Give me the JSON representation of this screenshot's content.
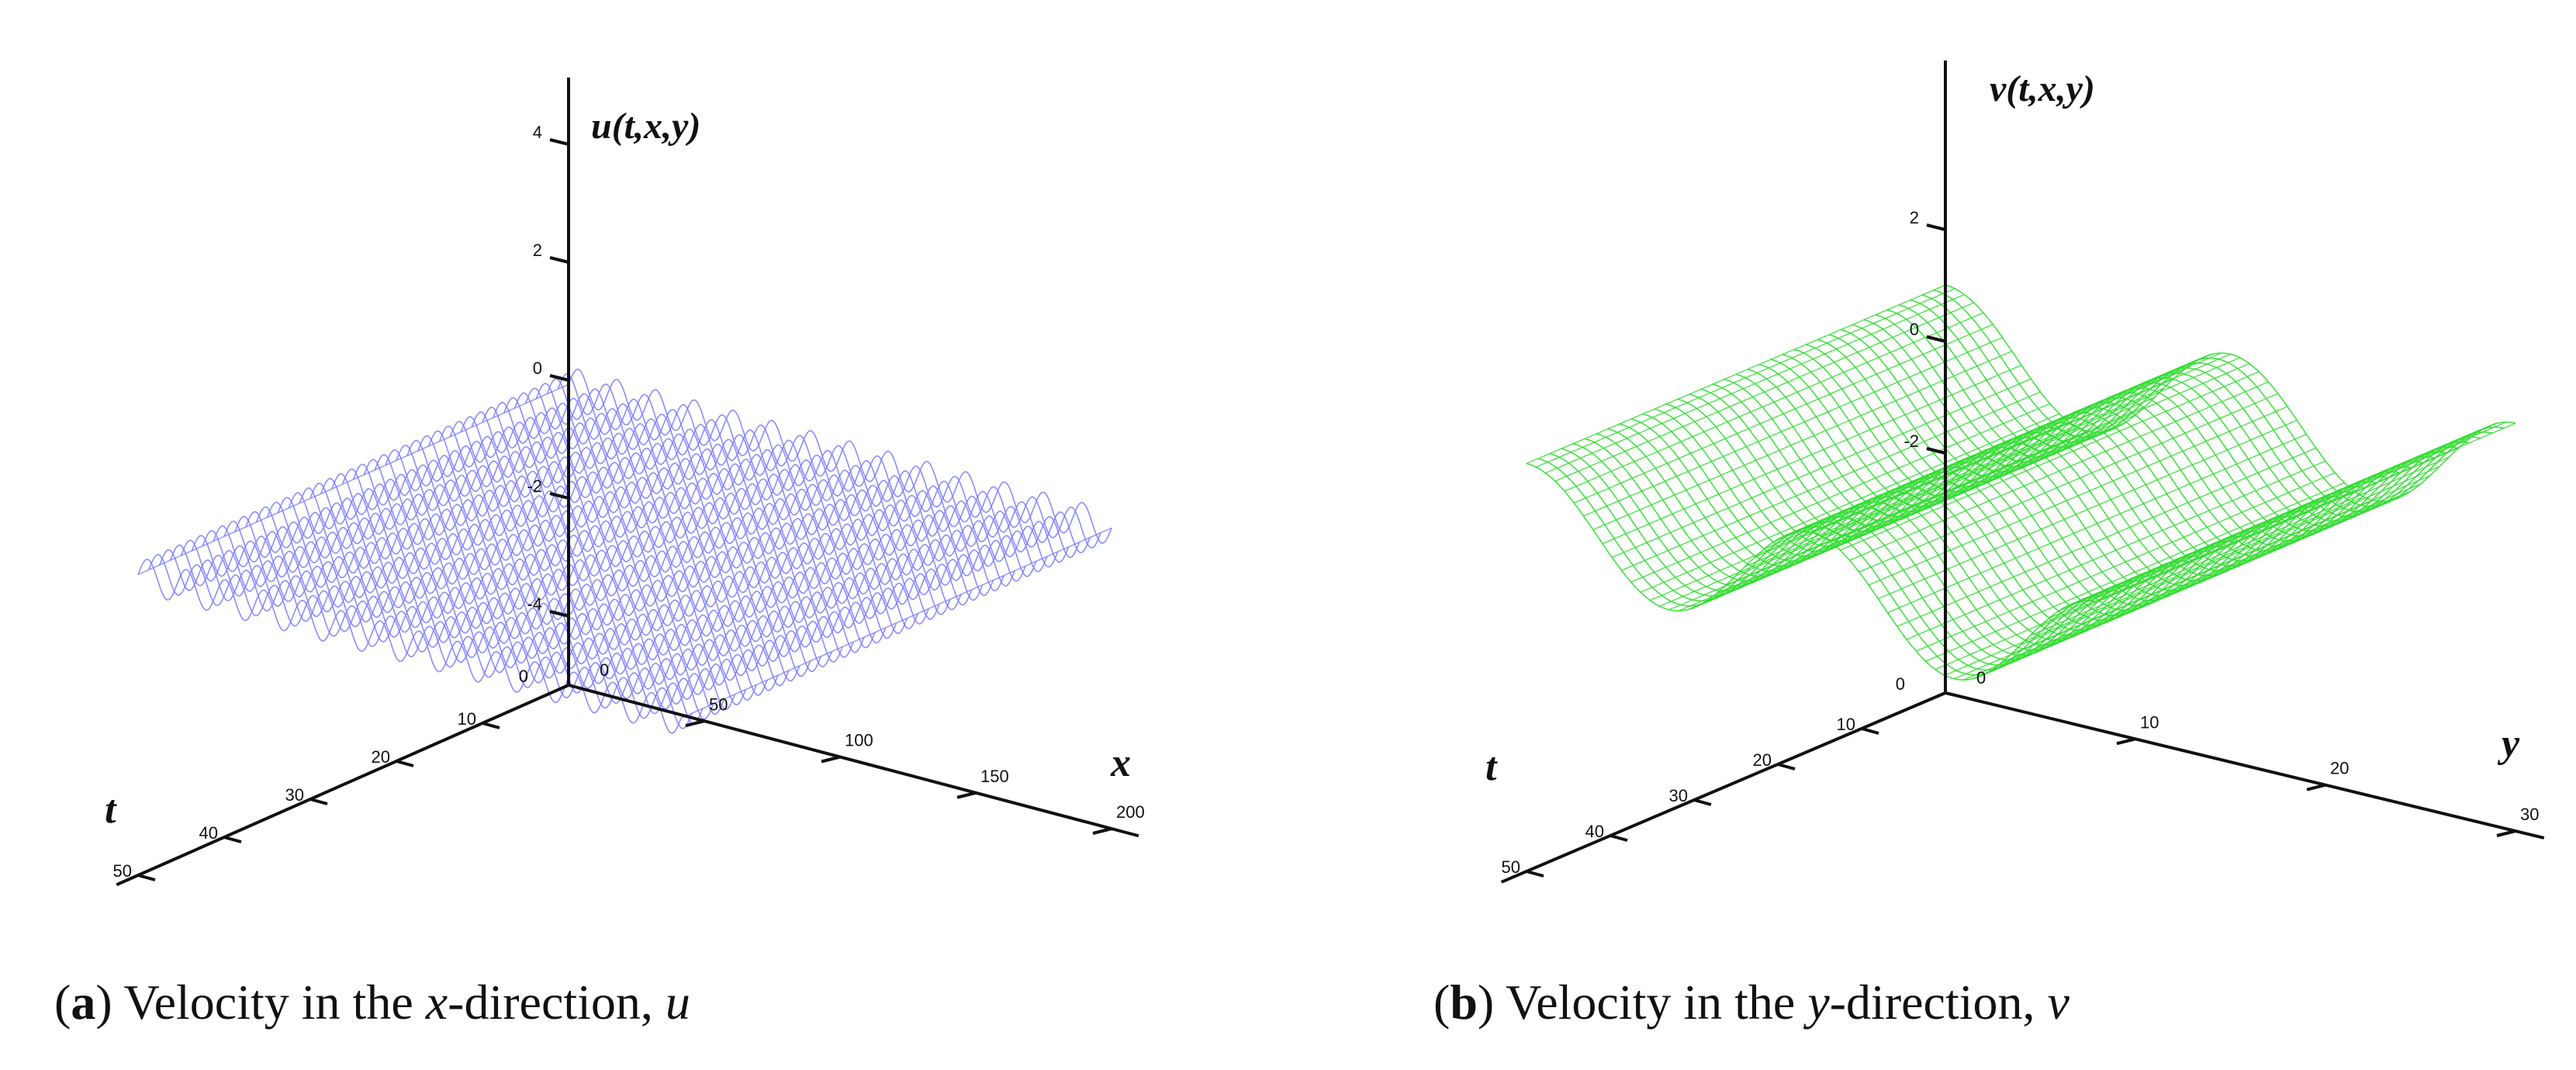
{
  "chart_data": [
    {
      "type": "surface",
      "panel_label": "a",
      "caption": {
        "prefix": "Velocity in the ",
        "var": "x",
        "middle": "-direction, ",
        "symbol": "u"
      },
      "function_label": "u(t,x,y)",
      "axes": {
        "t": {
          "label": "t",
          "ticks": [
            0,
            10,
            20,
            30,
            40,
            50
          ],
          "range": [
            0,
            50
          ]
        },
        "x": {
          "label": "x",
          "ticks": [
            0,
            50,
            100,
            150,
            200
          ],
          "range": [
            0,
            200
          ]
        },
        "z": {
          "ticks": [
            4,
            2,
            0,
            -2,
            -4
          ],
          "range": [
            -4,
            4
          ]
        }
      },
      "surface": {
        "color": "#8080ff",
        "form": "periodic ripples along x, constant in t",
        "amplitude": 0.3,
        "ripples": 14
      }
    },
    {
      "type": "surface",
      "panel_label": "b",
      "caption": {
        "prefix": "Velocity in the ",
        "var": "y",
        "middle": "-direction, ",
        "symbol": "v"
      },
      "function_label": "v(t,x,y)",
      "axes": {
        "t": {
          "label": "t",
          "ticks": [
            0,
            10,
            20,
            30,
            40,
            50
          ],
          "range": [
            0,
            50
          ]
        },
        "y": {
          "label": "y",
          "ticks": [
            0,
            10,
            20,
            30
          ],
          "range": [
            0,
            30
          ]
        },
        "z": {
          "ticks": [
            2,
            0,
            -2
          ],
          "range": [
            -2,
            2
          ]
        }
      },
      "surface": {
        "color": "#33dd33",
        "form": "sinusoidal waves along y, constant in t",
        "amplitude": 1.0,
        "waves": 2
      }
    }
  ]
}
